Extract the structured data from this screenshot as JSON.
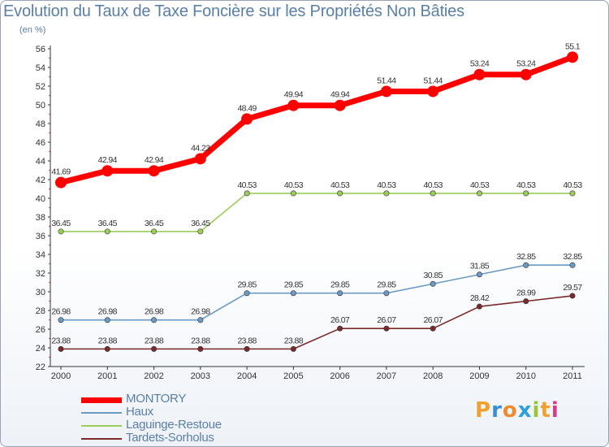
{
  "header": {
    "title": "Evolution du Taux de Taxe Foncière sur les Propriétés Non Bâties",
    "unit": "(en %)"
  },
  "logo": {
    "text": "Proxiti"
  },
  "chart_data": {
    "type": "line",
    "title": "Evolution du Taux de Taxe Foncière sur les Propriétés Non Bâties",
    "ylabel": "(en %)",
    "xlabel": "",
    "x": [
      "2000",
      "2001",
      "2002",
      "2003",
      "2004",
      "2005",
      "2006",
      "2007",
      "2008",
      "2009",
      "2010",
      "2011"
    ],
    "ylim": [
      22,
      56
    ],
    "yticks": [
      22,
      24,
      26,
      28,
      30,
      32,
      34,
      36,
      38,
      40,
      42,
      44,
      46,
      48,
      50,
      52,
      54,
      56
    ],
    "grid": false,
    "legend_position": "bottom-left",
    "series": [
      {
        "name": "MONTORY",
        "color": "#ff0000",
        "values": [
          41.69,
          42.94,
          42.94,
          44.23,
          48.49,
          49.94,
          49.94,
          51.44,
          51.44,
          53.24,
          53.24,
          55.1
        ]
      },
      {
        "name": "Haux",
        "color": "#6b9ac4",
        "values": [
          26.98,
          26.98,
          26.98,
          26.98,
          29.85,
          29.85,
          29.85,
          29.85,
          30.85,
          31.85,
          32.85,
          32.85
        ]
      },
      {
        "name": "Laguinge-Restoue",
        "color": "#9acd5a",
        "values": [
          36.45,
          36.45,
          36.45,
          36.45,
          40.53,
          40.53,
          40.53,
          40.53,
          40.53,
          40.53,
          40.53,
          40.53
        ]
      },
      {
        "name": "Tardets-Sorholus",
        "color": "#7a2a2a",
        "values": [
          23.88,
          23.88,
          23.88,
          23.88,
          23.88,
          23.88,
          26.07,
          26.07,
          26.07,
          28.42,
          28.99,
          29.57
        ]
      }
    ]
  }
}
